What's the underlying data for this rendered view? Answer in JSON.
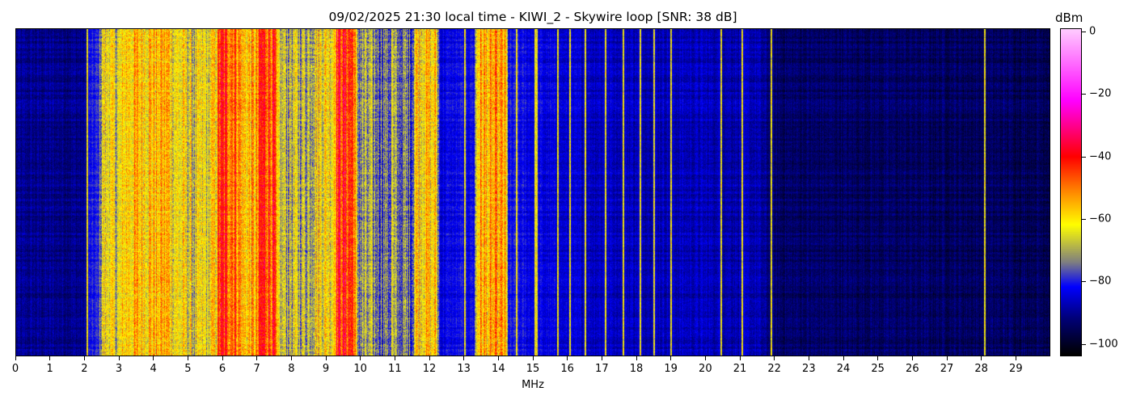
{
  "chart_data": {
    "type": "heatmap",
    "title": "09/02/2025 21:30 local time - KIWI_2 - Skywire loop [SNR: 38 dB]",
    "xlabel": "MHz",
    "colorbar_label": "dBm",
    "xlim": [
      0,
      30
    ],
    "clim": [
      -104,
      1
    ],
    "x_ticks": [
      "0",
      "1",
      "2",
      "3",
      "4",
      "5",
      "6",
      "7",
      "8",
      "9",
      "10",
      "11",
      "12",
      "13",
      "14",
      "15",
      "16",
      "17",
      "18",
      "19",
      "20",
      "21",
      "22",
      "23",
      "24",
      "25",
      "26",
      "27",
      "28",
      "29"
    ],
    "colorbar_ticks": [
      {
        "value": 0,
        "label": "0"
      },
      {
        "value": -20,
        "label": "−20"
      },
      {
        "value": -40,
        "label": "−40"
      },
      {
        "value": -60,
        "label": "−60"
      },
      {
        "value": -80,
        "label": "−80"
      },
      {
        "value": -100,
        "label": "−100"
      }
    ],
    "colormap": [
      {
        "dBm": -104,
        "color": "#000000"
      },
      {
        "dBm": -92,
        "color": "#00007a"
      },
      {
        "dBm": -82,
        "color": "#0000ff"
      },
      {
        "dBm": -74,
        "color": "#808080"
      },
      {
        "dBm": -62,
        "color": "#ffff00"
      },
      {
        "dBm": -52,
        "color": "#ff9000"
      },
      {
        "dBm": -40,
        "color": "#ff0000"
      },
      {
        "dBm": -22,
        "color": "#ff00ff"
      },
      {
        "dBm": 1,
        "color": "#ffccff"
      }
    ],
    "spectrum_profile_mhz_dbm": [
      [
        0,
        -91
      ],
      [
        2.0,
        -91
      ],
      [
        2.1,
        -83
      ],
      [
        2.4,
        -80
      ],
      [
        2.5,
        -64
      ],
      [
        3.0,
        -66
      ],
      [
        3.2,
        -58
      ],
      [
        4.4,
        -56
      ],
      [
        4.6,
        -62
      ],
      [
        5.0,
        -64
      ],
      [
        5.2,
        -68
      ],
      [
        5.8,
        -60
      ],
      [
        5.9,
        -44
      ],
      [
        6.4,
        -47
      ],
      [
        6.6,
        -58
      ],
      [
        7.0,
        -56
      ],
      [
        7.1,
        -42
      ],
      [
        7.5,
        -45
      ],
      [
        7.6,
        -68
      ],
      [
        8.5,
        -68
      ],
      [
        8.7,
        -62
      ],
      [
        9.2,
        -60
      ],
      [
        9.3,
        -42
      ],
      [
        9.8,
        -44
      ],
      [
        9.9,
        -72
      ],
      [
        11.5,
        -76
      ],
      [
        11.6,
        -58
      ],
      [
        12.2,
        -60
      ],
      [
        12.3,
        -84
      ],
      [
        13.3,
        -82
      ],
      [
        13.4,
        -56
      ],
      [
        14.2,
        -56
      ],
      [
        14.3,
        -82
      ],
      [
        15.2,
        -84
      ],
      [
        16.0,
        -86
      ],
      [
        21.5,
        -88
      ],
      [
        22.0,
        -94
      ],
      [
        30,
        -95
      ]
    ],
    "carriers_mhz": [
      2.05,
      2.65,
      3.1,
      4.1,
      5.55,
      10.9,
      11.85,
      12.05,
      13.0,
      13.7,
      14.0,
      14.5,
      15.05,
      15.1,
      15.7,
      16.05,
      16.5,
      17.1,
      17.6,
      18.1,
      18.5,
      19.0,
      20.45,
      21.05,
      21.9,
      28.1
    ]
  }
}
